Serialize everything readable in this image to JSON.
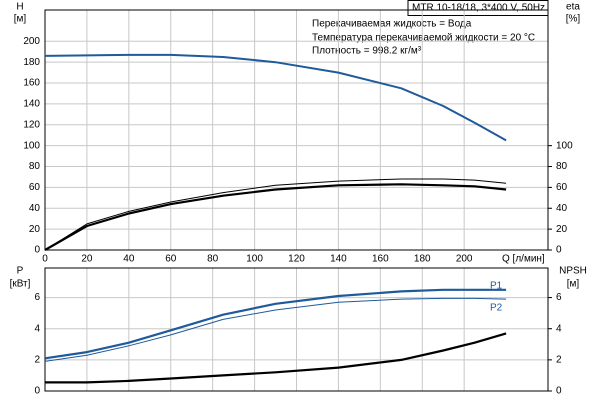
{
  "chart_data": [
    {
      "type": "line",
      "title": "MTR 10-18/18, 3*400 V, 50Hz",
      "annotations": [
        "Перекачиваемая жидкость = Вода",
        "Температура перекачиваемой жидкости = 20 °C",
        "Плотность = 998.2 кг/м³"
      ],
      "ylabel": "H",
      "yunit": "[м]",
      "y2label": "eta",
      "y2unit": "[%]",
      "xlabel": "Q [л/мин]",
      "x": [
        0,
        20,
        40,
        60,
        85,
        110,
        140,
        170,
        190,
        205,
        220
      ],
      "series": [
        {
          "color": "#1f5a9a",
          "values": [
            186,
            186.5,
            187,
            187,
            185,
            180,
            170,
            155,
            138,
            122,
            105
          ]
        },
        {
          "color": "#000000",
          "axis": "y2",
          "values": [
            0,
            25,
            37,
            46,
            55,
            62,
            66,
            68,
            68,
            67,
            64
          ]
        },
        {
          "color": "#000000",
          "axis": "y2",
          "values": [
            0,
            23,
            35,
            44,
            52,
            58,
            62,
            63,
            62,
            61,
            58
          ]
        }
      ],
      "xlim": [
        0,
        240
      ],
      "xticks": [
        0,
        20,
        40,
        60,
        80,
        100,
        120,
        140,
        160,
        180,
        200
      ],
      "ylim": [
        0,
        230
      ],
      "yticks": [
        0,
        20,
        40,
        60,
        80,
        100,
        120,
        140,
        160,
        180,
        200
      ],
      "y2lim": [
        0,
        230
      ],
      "y2ticks": [
        0,
        20,
        40,
        60,
        80,
        100
      ],
      "grid": true
    },
    {
      "type": "line",
      "ylabel": "P",
      "yunit": "[кВт]",
      "y2label": "NPSH",
      "y2unit": "[м]",
      "x": [
        0,
        20,
        40,
        60,
        85,
        110,
        140,
        170,
        190,
        205,
        220
      ],
      "series": [
        {
          "name": "P1",
          "color": "#1f5a9a",
          "values": [
            2.1,
            2.5,
            3.1,
            3.9,
            4.9,
            5.6,
            6.1,
            6.4,
            6.5,
            6.5,
            6.5
          ]
        },
        {
          "name": "P2",
          "color": "#1f5a9a",
          "values": [
            1.9,
            2.3,
            2.9,
            3.6,
            4.6,
            5.2,
            5.7,
            5.9,
            5.95,
            5.95,
            5.9
          ]
        },
        {
          "color": "#000000",
          "axis": "y2",
          "values": [
            0.55,
            0.55,
            0.65,
            0.8,
            1.0,
            1.2,
            1.5,
            2.0,
            2.6,
            3.1,
            3.7
          ]
        }
      ],
      "xlim": [
        0,
        240
      ],
      "xticks": [
        0,
        20,
        40,
        60,
        80,
        100,
        120,
        140,
        160,
        180,
        200
      ],
      "ylim": [
        0,
        7.9
      ],
      "yticks": [
        0,
        2,
        4,
        6
      ],
      "y2lim": [
        0,
        7.9
      ],
      "y2ticks": [
        0,
        2,
        4,
        6
      ],
      "grid": true
    }
  ]
}
